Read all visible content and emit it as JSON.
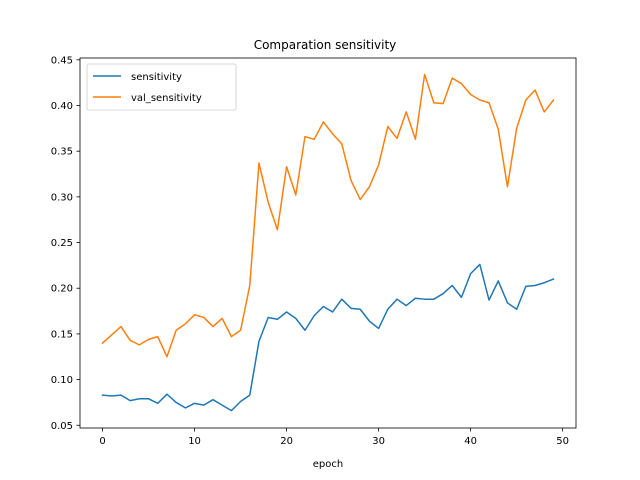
{
  "chart_data": {
    "type": "line",
    "title": "Comparation sensitivity",
    "xlabel": "epoch",
    "ylabel": "",
    "xlim": [
      -2.45,
      51.45
    ],
    "ylim": [
      0.047,
      0.452
    ],
    "xticks": [
      0,
      10,
      20,
      30,
      40,
      50
    ],
    "yticks": [
      0.05,
      0.1,
      0.15,
      0.2,
      0.25,
      0.3,
      0.35,
      0.4,
      0.45
    ],
    "ytick_labels": [
      "0.05",
      "0.10",
      "0.15",
      "0.20",
      "0.25",
      "0.30",
      "0.35",
      "0.40",
      "0.45"
    ],
    "grid": false,
    "legend_position": "top-left",
    "x": [
      0,
      1,
      2,
      3,
      4,
      5,
      6,
      7,
      8,
      9,
      10,
      11,
      12,
      13,
      14,
      15,
      16,
      17,
      18,
      19,
      20,
      21,
      22,
      23,
      24,
      25,
      26,
      27,
      28,
      29,
      30,
      31,
      32,
      33,
      34,
      35,
      36,
      37,
      38,
      39,
      40,
      41,
      42,
      43,
      44,
      45,
      46,
      47,
      48,
      49
    ],
    "series": [
      {
        "name": "sensitivity",
        "color": "#1f77b4",
        "values": [
          0.083,
          0.082,
          0.083,
          0.077,
          0.079,
          0.079,
          0.074,
          0.084,
          0.075,
          0.069,
          0.074,
          0.072,
          0.078,
          0.072,
          0.066,
          0.076,
          0.083,
          0.142,
          0.168,
          0.166,
          0.174,
          0.167,
          0.154,
          0.17,
          0.18,
          0.174,
          0.188,
          0.178,
          0.177,
          0.164,
          0.156,
          0.177,
          0.188,
          0.181,
          0.189,
          0.188,
          0.188,
          0.194,
          0.203,
          0.19,
          0.216,
          0.226,
          0.187,
          0.208,
          0.184,
          0.177,
          0.202,
          0.203,
          0.206,
          0.21
        ]
      },
      {
        "name": "val_sensitivity",
        "color": "#ff7f0e",
        "values": [
          0.14,
          0.149,
          0.158,
          0.143,
          0.138,
          0.144,
          0.147,
          0.125,
          0.154,
          0.161,
          0.171,
          0.168,
          0.158,
          0.167,
          0.147,
          0.154,
          0.203,
          0.337,
          0.294,
          0.264,
          0.333,
          0.302,
          0.366,
          0.363,
          0.382,
          0.369,
          0.358,
          0.318,
          0.297,
          0.311,
          0.335,
          0.377,
          0.364,
          0.393,
          0.363,
          0.434,
          0.403,
          0.402,
          0.43,
          0.424,
          0.412,
          0.406,
          0.403,
          0.374,
          0.311,
          0.375,
          0.406,
          0.417,
          0.393,
          0.406
        ]
      }
    ]
  }
}
